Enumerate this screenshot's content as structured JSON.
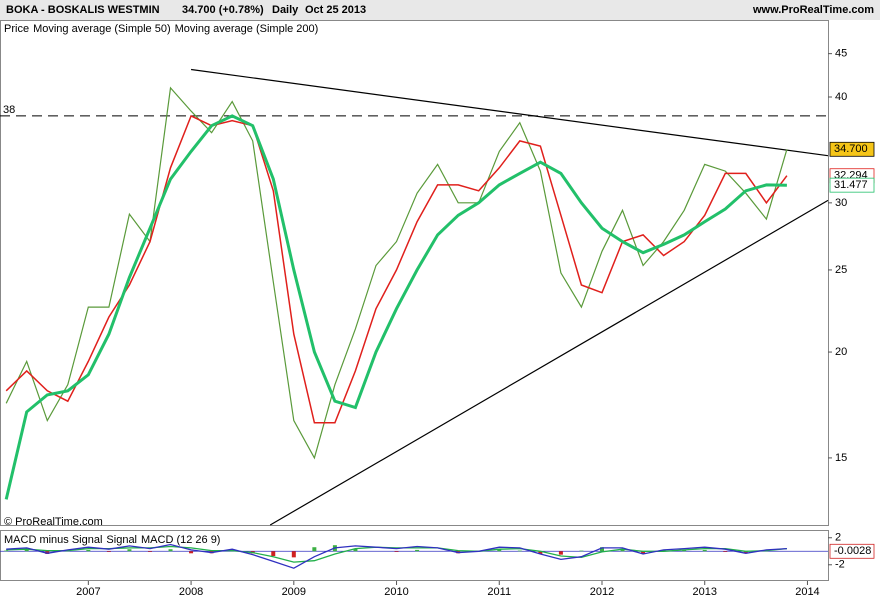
{
  "chart_data": [
    {
      "type": "line",
      "title": "BOKA - BOSKALIS WESTMIN",
      "quote": "34.700 (+0.78%)",
      "interval": "Daily",
      "date": "Oct 25 2013",
      "source": "www.ProRealTime.com",
      "copyright": "© ProRealTime.com",
      "log_scale": true,
      "x": [
        2006.2,
        2006.4,
        2006.6,
        2006.8,
        2007.0,
        2007.2,
        2007.4,
        2007.6,
        2007.8,
        2008.0,
        2008.2,
        2008.4,
        2008.6,
        2008.8,
        2009.0,
        2009.2,
        2009.4,
        2009.6,
        2009.8,
        2010.0,
        2010.2,
        2010.4,
        2010.6,
        2010.8,
        2011.0,
        2011.2,
        2011.4,
        2011.6,
        2011.8,
        2012.0,
        2012.2,
        2012.4,
        2012.6,
        2012.8,
        2013.0,
        2013.2,
        2013.4,
        2013.6,
        2013.8
      ],
      "series": [
        {
          "name": "Price",
          "color": "#5a9a3a",
          "values": [
            17.4,
            19.5,
            16.6,
            18.3,
            22.6,
            22.6,
            29.1,
            27,
            41,
            38.5,
            36.3,
            39.5,
            35.5,
            24.2,
            16.6,
            15,
            18.3,
            21.3,
            25.3,
            27,
            30.8,
            33.3,
            30,
            30,
            34.5,
            37.3,
            32.7,
            24.8,
            22.6,
            26.3,
            29.4,
            25.3,
            27,
            29.4,
            33.3,
            32.7,
            30.8,
            28.7,
            34.7
          ],
          "last": {
            "value": 34.7,
            "label": "34.700"
          }
        },
        {
          "name": "Moving average (Simple 50)",
          "color": "#e0201c",
          "values": [
            18,
            19,
            18,
            17.5,
            19.5,
            22,
            24,
            27,
            33,
            38,
            37,
            37.5,
            37,
            31,
            21,
            16.5,
            16.5,
            19,
            22.5,
            25,
            28.5,
            31.5,
            31.5,
            31,
            33,
            35.5,
            35,
            29,
            24,
            23.5,
            27,
            27.5,
            26,
            27,
            29,
            32.5,
            32.5,
            30,
            32.294
          ],
          "last": {
            "value": 32.294,
            "label": "32.294"
          }
        },
        {
          "name": "Moving average (Simple 200)",
          "color": "#22c06a",
          "values": [
            13.4,
            17,
            17.8,
            18,
            18.8,
            21,
            24.5,
            28,
            32,
            34.5,
            37,
            38,
            37,
            32,
            25,
            20,
            17.5,
            17.2,
            20,
            22.5,
            25,
            27.5,
            29,
            30,
            31.5,
            32.5,
            33.5,
            32.5,
            30,
            28,
            27,
            26.2,
            26.8,
            27.5,
            28.5,
            29.5,
            31,
            31.5,
            31.477
          ],
          "last": {
            "value": 31.477,
            "label": "31.477"
          }
        }
      ],
      "hline": 38,
      "trendlines": [
        {
          "x": [
            2008.0,
            2014.2
          ],
          "y": [
            43.1,
            34.1
          ]
        },
        {
          "x": [
            2008.77,
            2014.2
          ],
          "y": [
            12.5,
            30.2
          ]
        }
      ],
      "xlim": [
        2006.14,
        2014.2
      ],
      "xticks": [
        2007,
        2008,
        2009,
        2010,
        2011,
        2012,
        2013,
        2014
      ],
      "ylim": [
        12.5,
        46.7
      ],
      "yticks": [
        15,
        20,
        25,
        30,
        40,
        45
      ]
    },
    {
      "type": "macd",
      "series": [
        {
          "name": "MACD minus Signal",
          "color": "#d02020",
          "values": [
            0.1,
            0.2,
            -0.4,
            0.1,
            0.2,
            -0.1,
            0.3,
            -0.1,
            0.3,
            -0.3,
            -0.3,
            0.2,
            -0.3,
            -0.7,
            -0.9,
            0.6,
            0.9,
            0.4,
            0,
            -0.1,
            0.2,
            0,
            -0.3,
            0,
            0.3,
            0.1,
            -0.4,
            -0.5,
            0.1,
            0.6,
            0.2,
            -0.4,
            0.2,
            0.2,
            0.2,
            -0.1,
            -0.3,
            0.1,
            -0.0028
          ],
          "last": {
            "value": -0.0028,
            "label": "-0.0028"
          }
        },
        {
          "name": "Signal",
          "color": "#22b04a",
          "values": [
            0.2,
            0.3,
            0.1,
            0.1,
            0.4,
            0.4,
            0.5,
            0.5,
            0.7,
            0.5,
            0.1,
            0.1,
            -0.2,
            -0.8,
            -1.6,
            -1.4,
            -0.4,
            0.4,
            0.6,
            0.5,
            0.5,
            0.5,
            0.1,
            0,
            0.3,
            0.4,
            0,
            -0.7,
            -0.9,
            -0.1,
            0.3,
            0,
            0,
            0.2,
            0.4,
            0.4,
            0,
            0.1,
            0.4
          ]
        },
        {
          "name": "MACD (12 26 9)",
          "color": "#3030c0",
          "values": [
            0.3,
            0.5,
            -0.3,
            0.2,
            0.6,
            0.3,
            0.8,
            0.4,
            1.0,
            0.2,
            -0.2,
            0.3,
            -0.5,
            -1.5,
            -2.5,
            -0.8,
            0.5,
            0.8,
            0.6,
            0.4,
            0.7,
            0.5,
            -0.2,
            0,
            0.6,
            0.5,
            -0.4,
            -1.2,
            -0.8,
            0.5,
            0.5,
            -0.4,
            0.2,
            0.4,
            0.6,
            0.3,
            -0.3,
            0.2,
            0.4
          ]
        }
      ],
      "ylim": [
        -4.4,
        3
      ],
      "yticks": [
        -2,
        2
      ]
    }
  ]
}
